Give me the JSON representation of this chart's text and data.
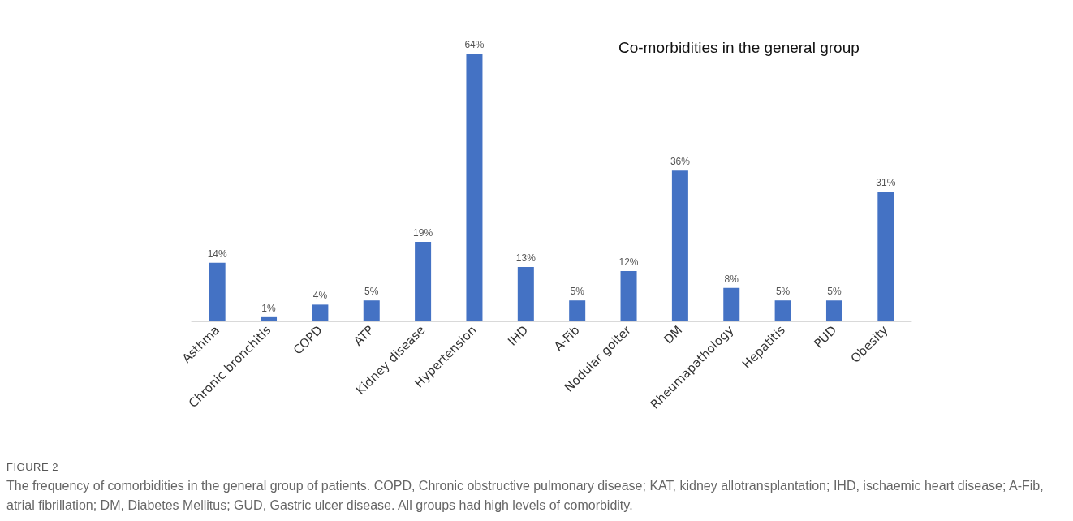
{
  "chart_data": {
    "type": "bar",
    "title": "Co-morbidities in the general group",
    "categories": [
      "Asthma",
      "Chronic bronchitis",
      "COPD",
      "ATP",
      "Kidney disease",
      "Hypertension",
      "IHD",
      "A-Fib",
      "Nodular goiter",
      "DM",
      "Rheumapathology",
      "Hepatitis",
      "PUD",
      "Obesity"
    ],
    "values": [
      14,
      1,
      4,
      5,
      19,
      64,
      13,
      5,
      12,
      36,
      8,
      5,
      5,
      31
    ],
    "value_labels": [
      "14%",
      "1%",
      "4%",
      "5%",
      "19%",
      "64%",
      "13%",
      "5%",
      "12%",
      "36%",
      "8%",
      "5%",
      "5%",
      "31%"
    ],
    "color": "#4472c4",
    "grid": false,
    "annotations": [
      "FIGURE 2",
      "The frequency of comorbidities in the general group of patients. COPD, Chronic obstructive pulmonary disease; KAT, kidney allotransplantation; IHD, ischaemic heart disease; A-Fib, atrial fibrillation; DM, Diabetes Mellitus; GUD, Gastric ulcer disease. All groups had high levels of comorbidity."
    ]
  }
}
